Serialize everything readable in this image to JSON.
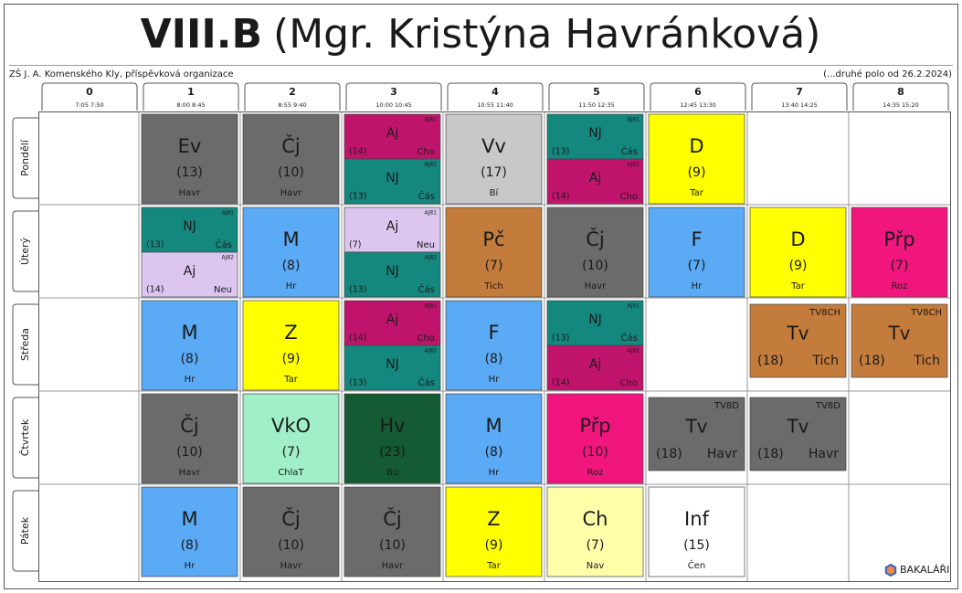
{
  "header": {
    "class": "VIII.B",
    "teacher": "(Mgr. Kristýna Havránková)",
    "school": "ZŠ J. A. Komenského Kly, příspěvková organizace",
    "note": "(...druhé polo od 26.2.2024)"
  },
  "periods": [
    {
      "number": "0",
      "time": "7:05 7:50"
    },
    {
      "number": "1",
      "time": "8:00 8:45"
    },
    {
      "number": "2",
      "time": "8:55 9:40"
    },
    {
      "number": "3",
      "time": "10:00 10:45"
    },
    {
      "number": "4",
      "time": "10:55 11:40"
    },
    {
      "number": "5",
      "time": "11:50 12:35"
    },
    {
      "number": "6",
      "time": "12:45 13:30"
    },
    {
      "number": "7",
      "time": "13:40 14:25"
    },
    {
      "number": "8",
      "time": "14:35 15:20"
    }
  ],
  "days": [
    {
      "name": "Pondělí",
      "lessons": [
        null,
        {
          "parts": [
            {
              "subject": "Ev",
              "room": "(13)",
              "teacher": "Havr",
              "color": "#6b6b6b"
            }
          ]
        },
        {
          "parts": [
            {
              "subject": "Čj",
              "room": "(10)",
              "teacher": "Havr",
              "color": "#6b6b6b"
            }
          ]
        },
        {
          "parts": [
            {
              "group": "AJ81",
              "subject": "Aj",
              "room": "(14)",
              "teacher": "Cho",
              "color": "#c0146c"
            },
            {
              "group": "AJ82",
              "subject": "NJ",
              "room": "(13)",
              "teacher": "Čás",
              "color": "#14887e"
            }
          ]
        },
        {
          "parts": [
            {
              "subject": "Vv",
              "room": "(17)",
              "teacher": "Bí",
              "color": "#c8c8c8"
            }
          ]
        },
        {
          "parts": [
            {
              "group": "AJ81",
              "subject": "NJ",
              "room": "(13)",
              "teacher": "Čás",
              "color": "#14887e"
            },
            {
              "group": "AJ82",
              "subject": "Aj",
              "room": "(14)",
              "teacher": "Cho",
              "color": "#c0146c"
            }
          ]
        },
        {
          "parts": [
            {
              "subject": "D",
              "room": "(9)",
              "teacher": "Tar",
              "color": "#ffff00"
            }
          ]
        },
        null,
        null
      ]
    },
    {
      "name": "Úterý",
      "lessons": [
        null,
        {
          "parts": [
            {
              "group": "AJ81",
              "subject": "NJ",
              "room": "(13)",
              "teacher": "Čás",
              "color": "#14887e"
            },
            {
              "group": "AJ82",
              "subject": "Aj",
              "room": "(14)",
              "teacher": "Neu",
              "color": "#dcc6f0"
            }
          ]
        },
        {
          "parts": [
            {
              "subject": "M",
              "room": "(8)",
              "teacher": "Hr",
              "color": "#5aaaf5"
            }
          ]
        },
        {
          "parts": [
            {
              "group": "AJ81",
              "subject": "Aj",
              "room": "(7)",
              "teacher": "Neu",
              "color": "#dcc6f0"
            },
            {
              "group": "AJ82",
              "subject": "NJ",
              "room": "(13)",
              "teacher": "Čás",
              "color": "#14887e"
            }
          ]
        },
        {
          "parts": [
            {
              "subject": "Pč",
              "room": "(7)",
              "teacher": "Tich",
              "color": "#c47c3c"
            }
          ]
        },
        {
          "parts": [
            {
              "subject": "Čj",
              "room": "(10)",
              "teacher": "Havr",
              "color": "#6b6b6b"
            }
          ]
        },
        {
          "parts": [
            {
              "subject": "F",
              "room": "(7)",
              "teacher": "Hr",
              "color": "#5aaaf5"
            }
          ]
        },
        {
          "parts": [
            {
              "subject": "D",
              "room": "(9)",
              "teacher": "Tar",
              "color": "#ffff00"
            }
          ]
        },
        {
          "parts": [
            {
              "subject": "Přp",
              "room": "(7)",
              "teacher": "Roz",
              "color": "#f0167e"
            }
          ]
        }
      ]
    },
    {
      "name": "Středa",
      "lessons": [
        null,
        {
          "parts": [
            {
              "subject": "M",
              "room": "(8)",
              "teacher": "Hr",
              "color": "#5aaaf5"
            }
          ]
        },
        {
          "parts": [
            {
              "subject": "Z",
              "room": "(9)",
              "teacher": "Tar",
              "color": "#ffff00"
            }
          ]
        },
        {
          "parts": [
            {
              "group": "AJ81",
              "subject": "Aj",
              "room": "(14)",
              "teacher": "Cho",
              "color": "#c0146c"
            },
            {
              "group": "AJ82",
              "subject": "NJ",
              "room": "(13)",
              "teacher": "Čás",
              "color": "#14887e"
            }
          ]
        },
        {
          "parts": [
            {
              "subject": "F",
              "room": "(8)",
              "teacher": "Hr",
              "color": "#5aaaf5"
            }
          ]
        },
        {
          "parts": [
            {
              "group": "AJ81",
              "subject": "NJ",
              "room": "(13)",
              "teacher": "Čás",
              "color": "#14887e"
            },
            {
              "group": "AJ82",
              "subject": "Aj",
              "room": "(14)",
              "teacher": "Cho",
              "color": "#c0146c"
            }
          ]
        },
        null,
        {
          "parts": [
            {
              "group": "TV8CH",
              "subject": "Tv",
              "room": "(18)",
              "teacher": "Tich",
              "color": "#c47c3c"
            }
          ]
        },
        {
          "parts": [
            {
              "group": "TV8CH",
              "subject": "Tv",
              "room": "(18)",
              "teacher": "Tich",
              "color": "#c47c3c"
            }
          ]
        }
      ]
    },
    {
      "name": "Čtvrtek",
      "lessons": [
        null,
        {
          "parts": [
            {
              "subject": "Čj",
              "room": "(10)",
              "teacher": "Havr",
              "color": "#6b6b6b"
            }
          ]
        },
        {
          "parts": [
            {
              "subject": "VkO",
              "room": "(7)",
              "teacher": "ChlaT",
              "color": "#a0efc8"
            }
          ]
        },
        {
          "parts": [
            {
              "subject": "Hv",
              "room": "(23)",
              "teacher": "Bu",
              "color": "#145a32"
            }
          ]
        },
        {
          "parts": [
            {
              "subject": "M",
              "room": "(8)",
              "teacher": "Hr",
              "color": "#5aaaf5"
            }
          ]
        },
        {
          "parts": [
            {
              "subject": "Přp",
              "room": "(10)",
              "teacher": "Roz",
              "color": "#f0167e"
            }
          ]
        },
        {
          "parts": [
            {
              "group": "TV8D",
              "subject": "Tv",
              "room": "(18)",
              "teacher": "Havr",
              "color": "#6b6b6b"
            }
          ]
        },
        {
          "parts": [
            {
              "group": "TV8D",
              "subject": "Tv",
              "room": "(18)",
              "teacher": "Havr",
              "color": "#6b6b6b"
            }
          ]
        },
        null
      ]
    },
    {
      "name": "Pátek",
      "lessons": [
        null,
        {
          "parts": [
            {
              "subject": "M",
              "room": "(8)",
              "teacher": "Hr",
              "color": "#5aaaf5"
            }
          ]
        },
        {
          "parts": [
            {
              "subject": "Čj",
              "room": "(10)",
              "teacher": "Havr",
              "color": "#6b6b6b"
            }
          ]
        },
        {
          "parts": [
            {
              "subject": "Čj",
              "room": "(10)",
              "teacher": "Havr",
              "color": "#6b6b6b"
            }
          ]
        },
        {
          "parts": [
            {
              "subject": "Z",
              "room": "(9)",
              "teacher": "Tar",
              "color": "#ffff00"
            }
          ]
        },
        {
          "parts": [
            {
              "subject": "Ch",
              "room": "(7)",
              "teacher": "Nav",
              "color": "#ffffaa"
            }
          ]
        },
        {
          "parts": [
            {
              "subject": "Inf",
              "room": "(15)",
              "teacher": "Čen",
              "color": "#ffffff"
            }
          ]
        },
        null,
        null
      ]
    }
  ],
  "logo": "BAKALÁŘI"
}
